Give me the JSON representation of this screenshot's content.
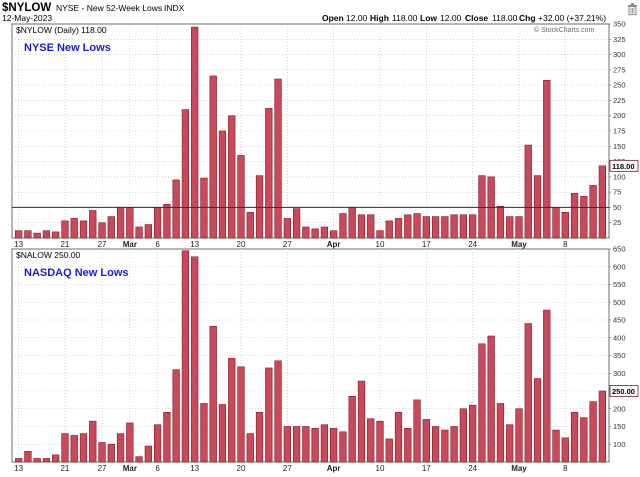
{
  "header": {
    "symbol": "$NYLOW",
    "description": "NYSE - New 52-Week Lows",
    "exchange": "INDX",
    "date": "12-May-2023",
    "open_label": "Open",
    "open_value": "12.00",
    "high_label": "High",
    "high_value": "118.00",
    "low_label": "Low",
    "low_value": "12.00",
    "close_label": "Close",
    "close_value": "118.00",
    "chg_label": "Chg",
    "chg_value": "+32.00 (+37.21%)",
    "copyright": "© StockCharts.com"
  },
  "colors": {
    "bar_fill": "#c9485a",
    "bar_stroke": "#7a1f2b",
    "title": "#1b1bd6",
    "grid": "#b9b9b9",
    "reference_line": "#1f2a6e",
    "plot_bg": "#ffffff"
  },
  "chart_data": [
    {
      "type": "bar",
      "legend": "$NYLOW (Daily) 118.00",
      "title": "NYSE New Lows",
      "last_value_label": "118.00",
      "ylim": [
        0,
        350
      ],
      "yticks": [
        25,
        50,
        75,
        100,
        125,
        150,
        175,
        200,
        225,
        250,
        275,
        300,
        325,
        350
      ],
      "reference_line": 50,
      "grid": true,
      "values": [
        12,
        12,
        8,
        12,
        10,
        28,
        32,
        28,
        45,
        25,
        35,
        50,
        50,
        18,
        22,
        50,
        55,
        95,
        210,
        345,
        98,
        265,
        175,
        200,
        135,
        42,
        102,
        212,
        260,
        32,
        48,
        18,
        15,
        18,
        12,
        40,
        50,
        38,
        38,
        12,
        28,
        32,
        38,
        40,
        35,
        35,
        35,
        38,
        38,
        38,
        102,
        100,
        52,
        35,
        35,
        152,
        102,
        258,
        50,
        42,
        73,
        68,
        86,
        118
      ]
    },
    {
      "type": "bar",
      "legend": "$NALOW 250.00",
      "title": "NASDAQ New Lows",
      "last_value_label": "250.00",
      "ylim": [
        50,
        650
      ],
      "yticks": [
        100,
        150,
        200,
        250,
        300,
        350,
        400,
        450,
        500,
        550,
        600,
        650
      ],
      "grid": true,
      "values": [
        60,
        80,
        60,
        60,
        70,
        130,
        125,
        130,
        165,
        105,
        100,
        130,
        160,
        65,
        95,
        155,
        190,
        310,
        645,
        628,
        215,
        432,
        212,
        342,
        318,
        130,
        190,
        315,
        335,
        150,
        150,
        150,
        145,
        155,
        145,
        135,
        235,
        278,
        172,
        165,
        115,
        190,
        145,
        225,
        170,
        150,
        140,
        150,
        200,
        210,
        383,
        405,
        215,
        155,
        200,
        440,
        285,
        478,
        140,
        118,
        190,
        175,
        220,
        250
      ]
    }
  ],
  "x_axis": {
    "labels": [
      {
        "index": 0,
        "text": "13",
        "month": false
      },
      {
        "index": 5,
        "text": "21",
        "month": false
      },
      {
        "index": 9,
        "text": "27",
        "month": false
      },
      {
        "index": 12,
        "text": "Mar",
        "month": true
      },
      {
        "index": 15,
        "text": "6",
        "month": false
      },
      {
        "index": 19,
        "text": "13",
        "month": false
      },
      {
        "index": 24,
        "text": "20",
        "month": false
      },
      {
        "index": 29,
        "text": "27",
        "month": false
      },
      {
        "index": 34,
        "text": "Apr",
        "month": true
      },
      {
        "index": 39,
        "text": "10",
        "month": false
      },
      {
        "index": 44,
        "text": "17",
        "month": false
      },
      {
        "index": 49,
        "text": "24",
        "month": false
      },
      {
        "index": 54,
        "text": "May",
        "month": true
      },
      {
        "index": 59,
        "text": "8",
        "month": false
      }
    ]
  }
}
